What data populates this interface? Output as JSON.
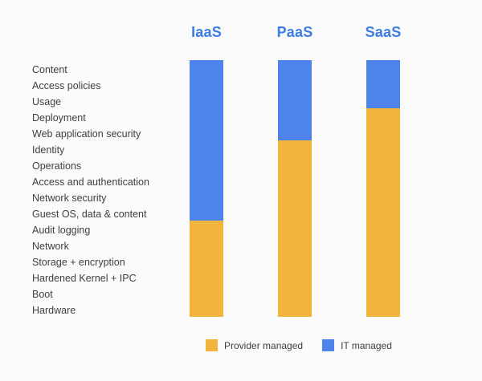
{
  "chart_data": {
    "type": "bar",
    "title": "",
    "description": "Stacked responsibility bars for cloud service models",
    "layers": [
      "Content",
      "Access policies",
      "Usage",
      "Deployment",
      "Web application security",
      "Identity",
      "Operations",
      "Access and authentication",
      "Network security",
      "Guest OS, data & content",
      "Audit logging",
      "Network",
      "Storage + encryption",
      "Hardened Kernel + IPC",
      "Boot",
      "Hardware"
    ],
    "columns": [
      {
        "label": "IaaS",
        "it_managed_top_layers": 10,
        "provider_managed_bottom_layers": 6
      },
      {
        "label": "PaaS",
        "it_managed_top_layers": 5,
        "provider_managed_bottom_layers": 11
      },
      {
        "label": "SaaS",
        "it_managed_top_layers": 3,
        "provider_managed_bottom_layers": 13
      }
    ],
    "legend": [
      {
        "label": "Provider managed",
        "color": "#F1B53E"
      },
      {
        "label": "IT managed",
        "color": "#4E83EA"
      }
    ],
    "colors": {
      "header_text": "#3D7BE5",
      "label_text": "#3C4043",
      "background": "#FBFBFB"
    },
    "legend_position": "bottom",
    "grid": false
  }
}
